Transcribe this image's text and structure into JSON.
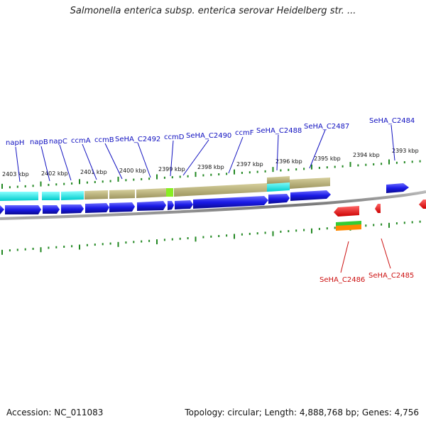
{
  "title": "Salmonella enterica subsp. enterica serovar Heidelberg str. ...",
  "footer": {
    "accession": "Accession: NC_011083",
    "summary": "Topology: circular; Length: 4,888,768 bp; Genes: 4,756"
  },
  "ruler_labels": [
    "2403 kbp",
    "2402 kbp",
    "2401 kbp",
    "2400 kbp",
    "2399 kbp",
    "2398 kbp",
    "2397 kbp",
    "2396 kbp",
    "2395 kbp",
    "2394 kbp",
    "2393 kbp"
  ],
  "gene_labels_top": [
    "napH",
    "napB",
    "napC",
    "ccmA",
    "ccmB",
    "SeHA_C2492",
    "ccmD",
    "SeHA_C2490",
    "ccmF",
    "SeHA_C2488",
    "SeHA_C2487",
    "SeHA_C2484"
  ],
  "gene_labels_bottom": [
    "SeHA_C2486",
    "SeHA_C2485"
  ],
  "colors": {
    "gene_blue": "#1a1ae6",
    "cyan": "#19e0e0",
    "khaki": "#b8b07a",
    "lime": "#88ee22",
    "red": "#ee1111",
    "green": "#33cc33",
    "orange": "#ff8800",
    "tick": "#228822",
    "backbone": "#888888",
    "label_blue": "#1010c0",
    "label_red": "#cc1010"
  }
}
